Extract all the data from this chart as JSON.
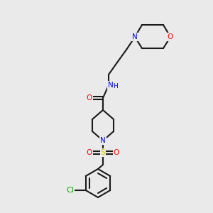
{
  "background_color": "#eaeaea",
  "bond_color": "#1a1a1a",
  "bond_width": 1.5,
  "atom_colors": {
    "O": "#ff0000",
    "N": "#0000ff",
    "S": "#cccc00",
    "Cl": "#00aa00",
    "C": "#1a1a1a"
  },
  "font_size": 7.5
}
